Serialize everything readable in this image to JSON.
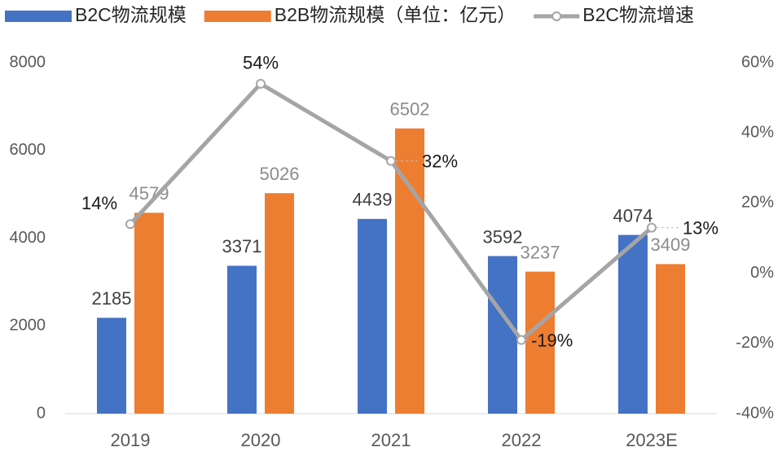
{
  "chart_data": {
    "type": "bar_line",
    "categories": [
      "2019",
      "2020",
      "2021",
      "2022",
      "2023E"
    ],
    "series": [
      {
        "name": "B2C物流规模",
        "color": "#4472c4",
        "values": [
          2185,
          3371,
          4439,
          3592,
          4074
        ]
      },
      {
        "name": "B2B物流规模（单位：亿元）",
        "color": "#ed7d31",
        "values": [
          4579,
          5026,
          6502,
          3237,
          3409
        ]
      },
      {
        "name": "B2C物流增速",
        "color": "#a5a5a5",
        "axis": "y2",
        "values": [
          14,
          54,
          32,
          -19,
          13
        ],
        "value_labels": [
          "14%",
          "54%",
          "32%",
          "-19%",
          "13%"
        ]
      }
    ],
    "ylim": [
      0,
      8000
    ],
    "yticks": [
      0,
      2000,
      4000,
      6000,
      8000
    ],
    "y2lim": [
      -40,
      60
    ],
    "y2ticks": [
      {
        "value": -40,
        "label": "-40%"
      },
      {
        "value": -20,
        "label": "-20%"
      },
      {
        "value": 0,
        "label": "0%"
      },
      {
        "value": 20,
        "label": "20%"
      },
      {
        "value": 40,
        "label": "40%"
      },
      {
        "value": 60,
        "label": "60%"
      }
    ],
    "legend": "top"
  }
}
